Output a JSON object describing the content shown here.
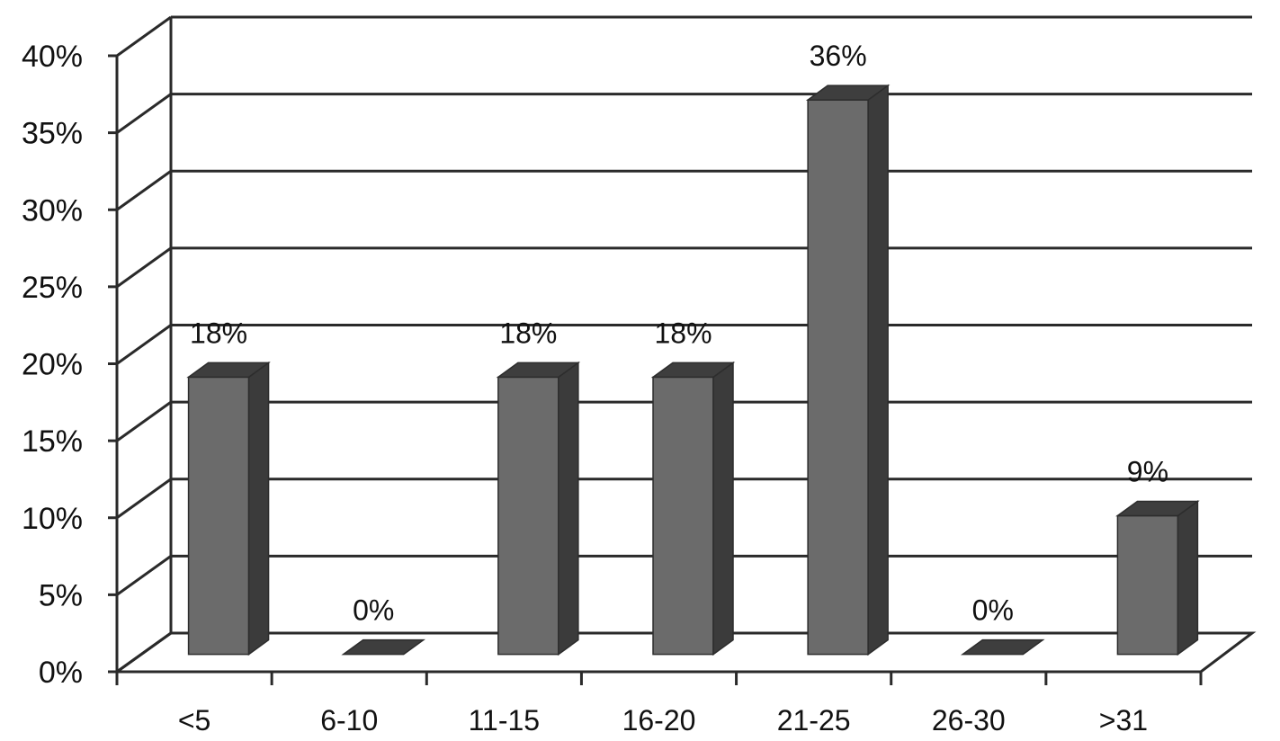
{
  "chart_data": {
    "type": "bar",
    "title": "",
    "xlabel": "",
    "ylabel": "",
    "categories": [
      "<5",
      "6-10",
      "11-15",
      "16-20",
      "21-25",
      "26-30",
      ">31"
    ],
    "values": [
      18,
      0,
      18,
      18,
      36,
      0,
      9
    ],
    "data_labels": [
      "18%",
      "0%",
      "18%",
      "18%",
      "36%",
      "0%",
      "9%"
    ],
    "y_ticks": [
      "0%",
      "5%",
      "10%",
      "15%",
      "20%",
      "25%",
      "30%",
      "35%",
      "40%"
    ],
    "ylim": [
      0,
      40
    ],
    "grid": true,
    "legend": "none",
    "style": "3d-column",
    "colors": {
      "bar_front": "#6b6b6b",
      "bar_side": "#3b3b3b",
      "bar_top": "#3e3e3e",
      "grid": "#2a2a2a"
    }
  }
}
